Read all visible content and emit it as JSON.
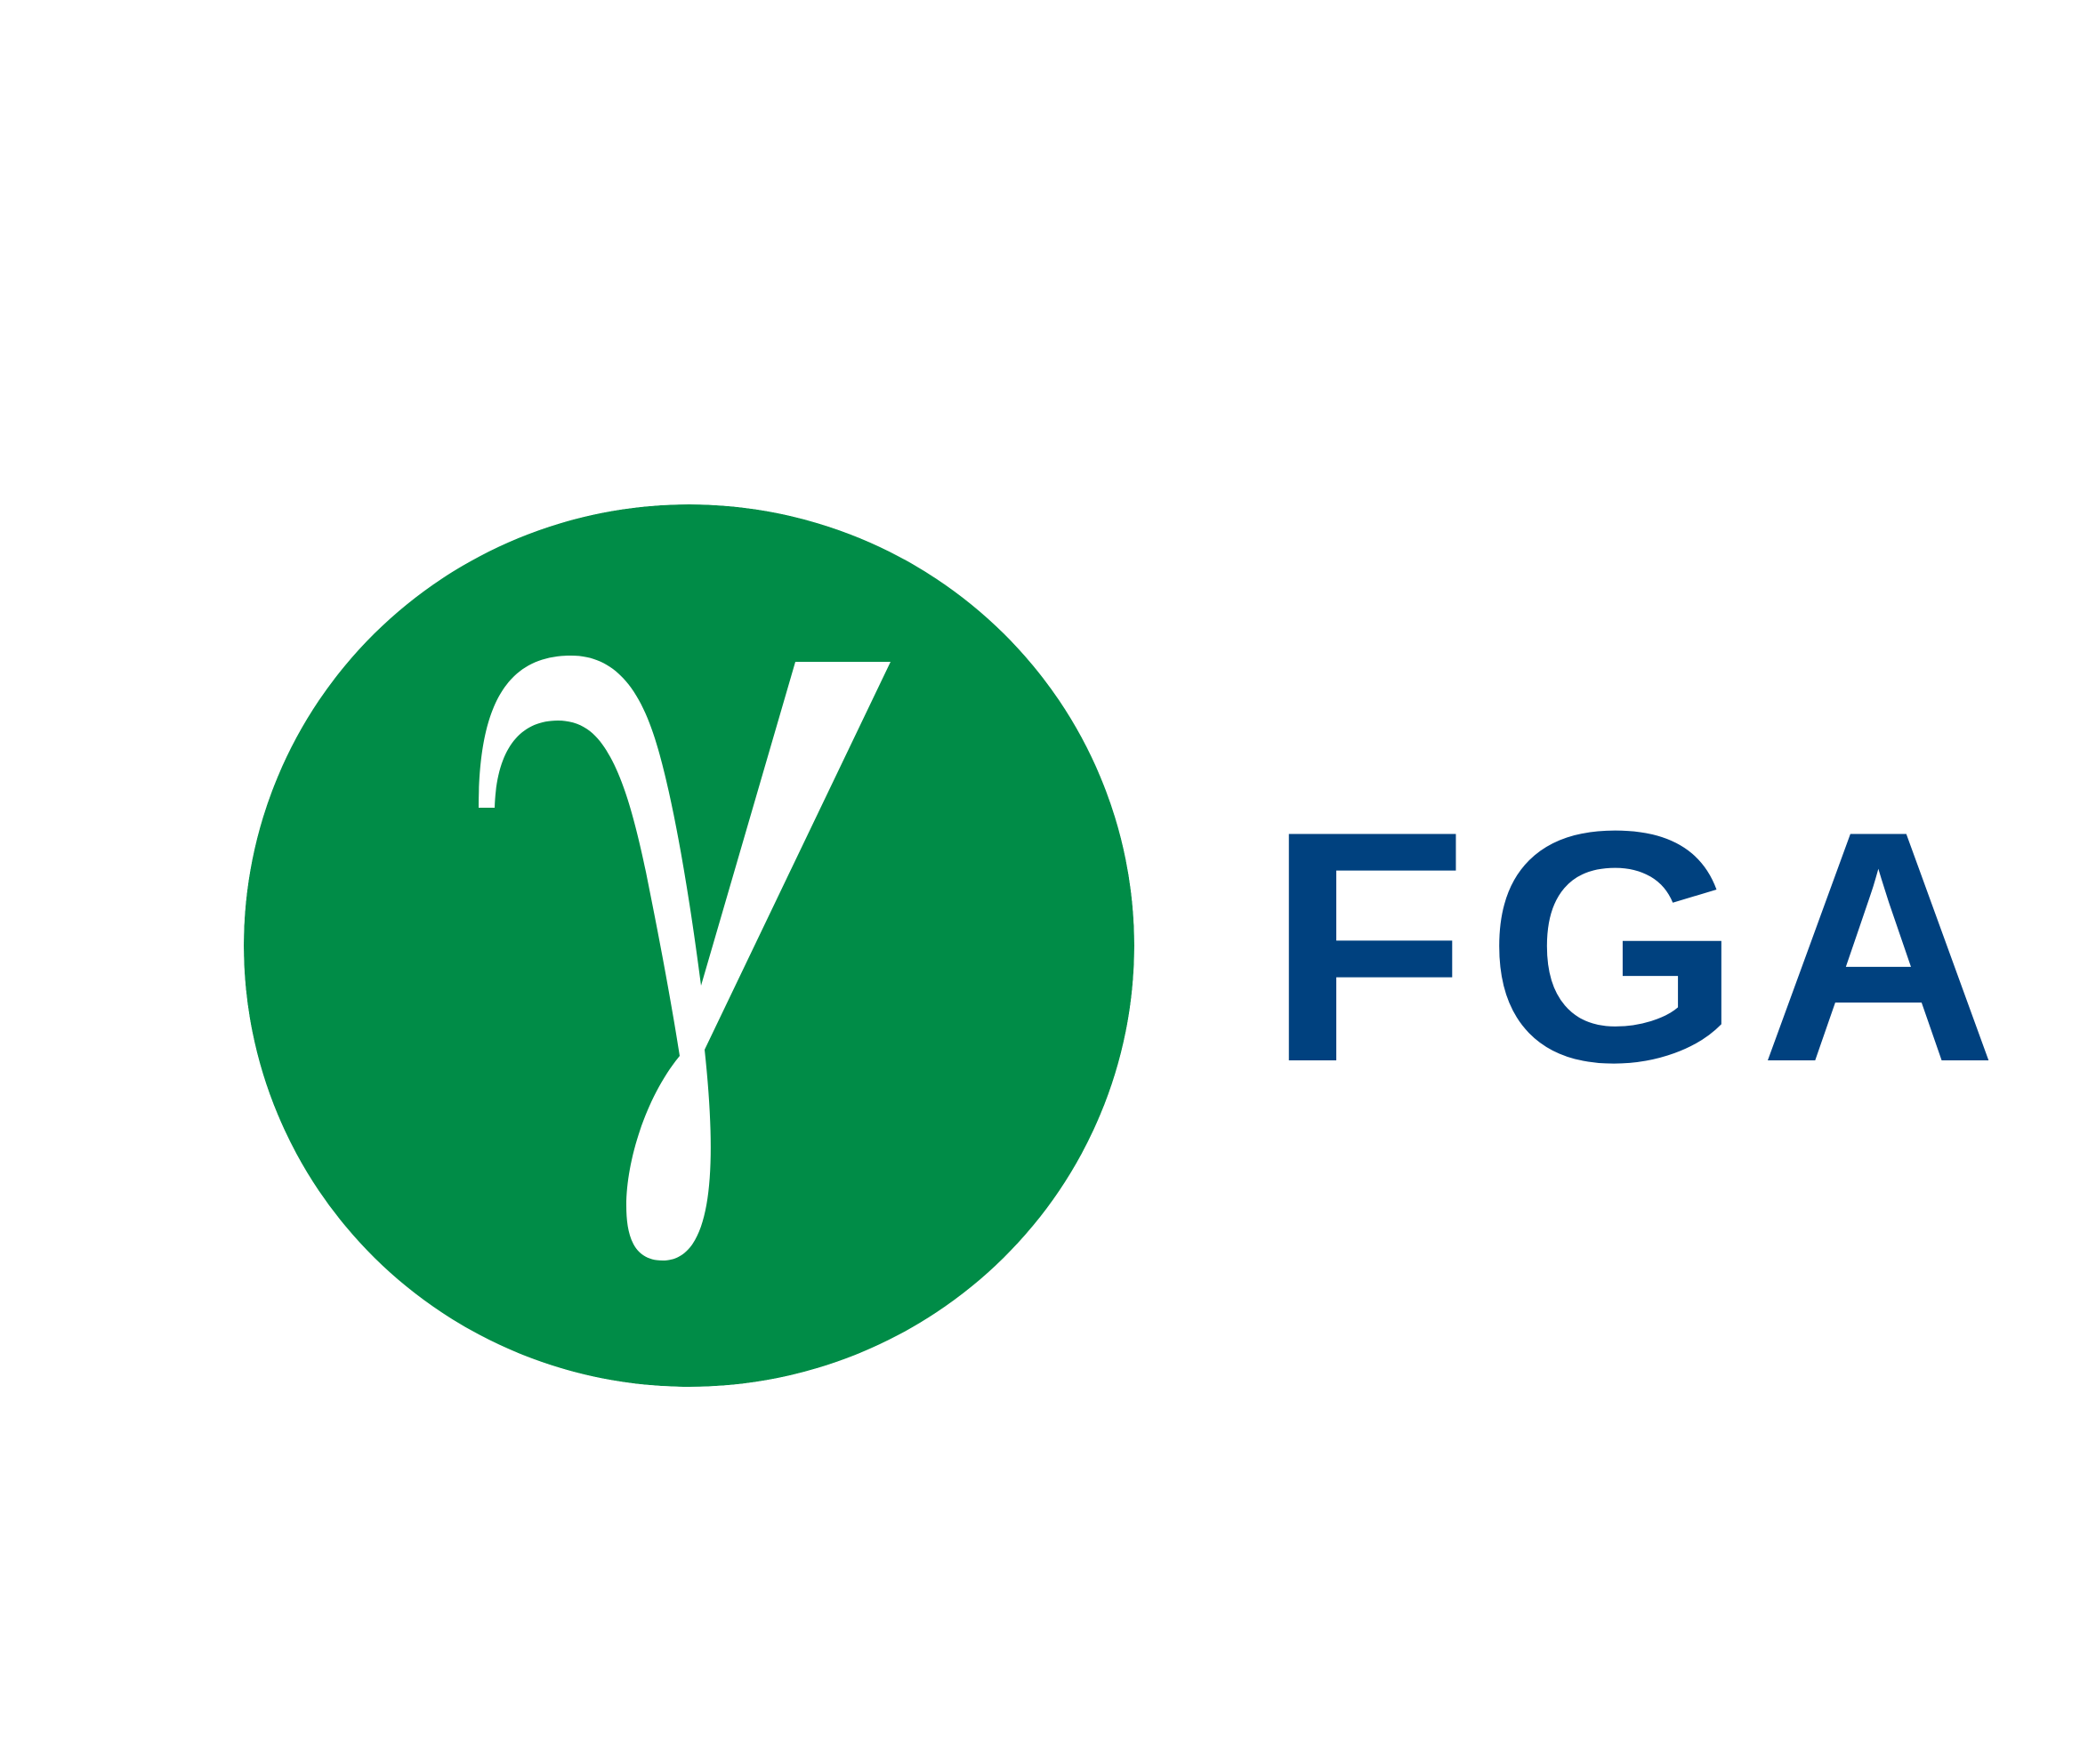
{
  "logo": {
    "symbol": "γ",
    "icon": "gamma-symbol-icon",
    "circle_color": "#008C47",
    "symbol_color": "#FFFFFF"
  },
  "brand": {
    "name": "FGA",
    "text_color": "#00417F"
  },
  "background": "#FFFFFF"
}
